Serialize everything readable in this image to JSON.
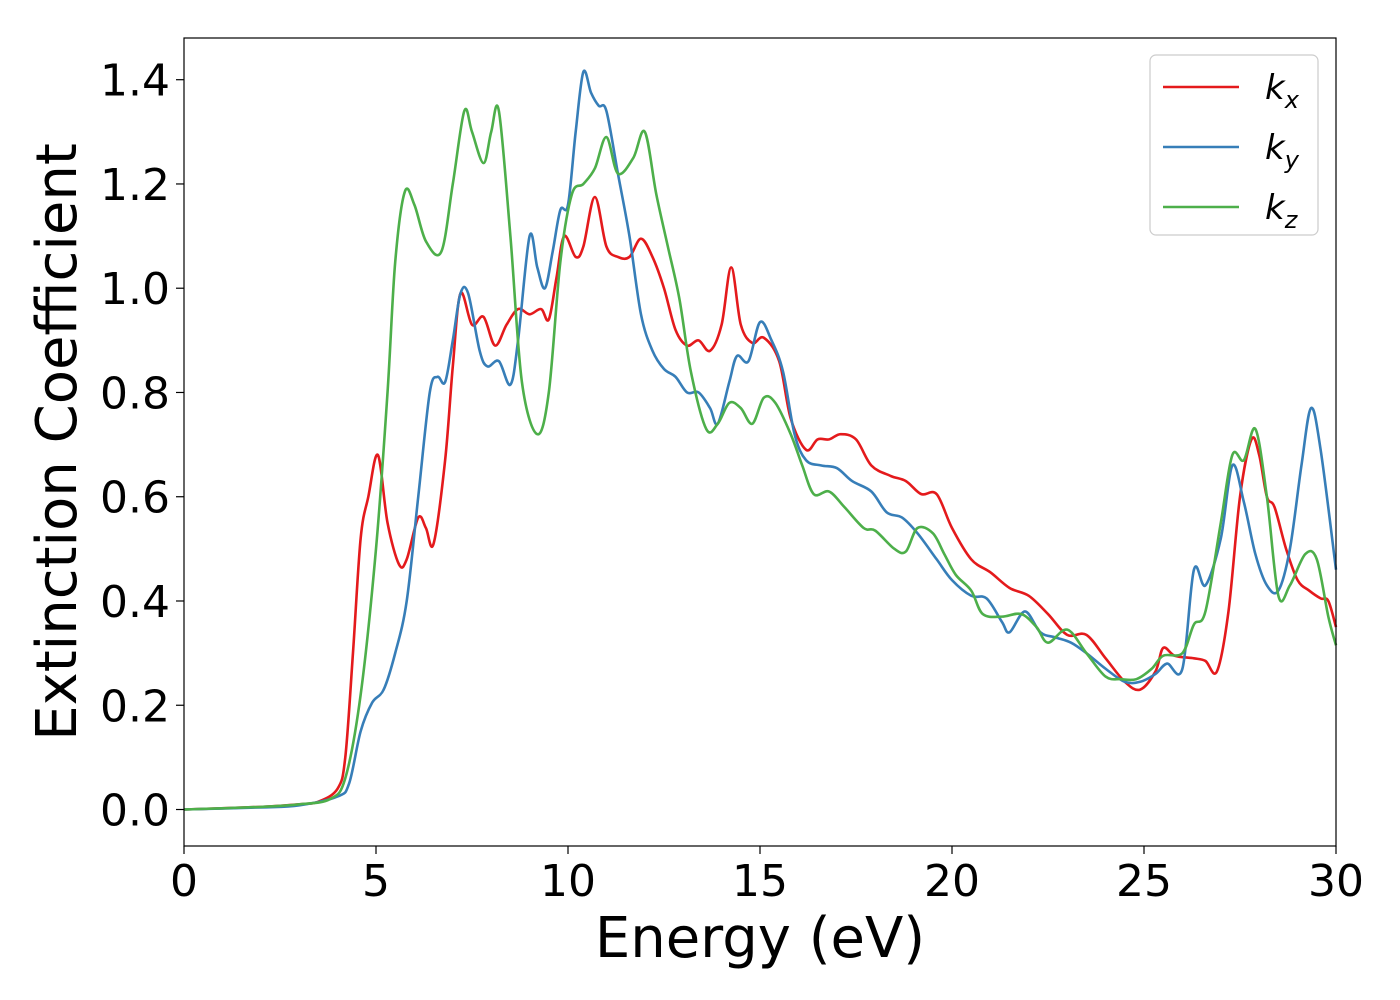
{
  "chart_data": {
    "type": "line",
    "xlabel": "Energy (eV)",
    "ylabel": "Extinction Coefficient",
    "xlim": [
      0,
      30
    ],
    "ylim": [
      -0.07,
      1.48
    ],
    "xticks": [
      0,
      5,
      10,
      15,
      20,
      25,
      30
    ],
    "xtick_labels": [
      "0",
      "5",
      "10",
      "15",
      "20",
      "25",
      "30"
    ],
    "yticks": [
      0.0,
      0.2,
      0.4,
      0.6,
      0.8,
      1.0,
      1.2,
      1.4
    ],
    "ytick_labels": [
      "0.0",
      "0.2",
      "0.4",
      "0.6",
      "0.8",
      "1.0",
      "1.2",
      "1.4"
    ],
    "grid": false,
    "legend_position": "top-right",
    "series": [
      {
        "name": "kx",
        "legend_base": "k",
        "legend_sub": "x",
        "color": "#e41a1c",
        "points": [
          [
            0,
            0
          ],
          [
            2,
            0.005
          ],
          [
            3,
            0.01
          ],
          [
            3.5,
            0.015
          ],
          [
            4,
            0.04
          ],
          [
            4.2,
            0.1
          ],
          [
            4.4,
            0.3
          ],
          [
            4.6,
            0.52
          ],
          [
            4.8,
            0.6
          ],
          [
            5.05,
            0.68
          ],
          [
            5.3,
            0.55
          ],
          [
            5.6,
            0.47
          ],
          [
            5.8,
            0.48
          ],
          [
            6.1,
            0.56
          ],
          [
            6.3,
            0.54
          ],
          [
            6.5,
            0.51
          ],
          [
            6.8,
            0.67
          ],
          [
            7.0,
            0.85
          ],
          [
            7.2,
            0.99
          ],
          [
            7.5,
            0.93
          ],
          [
            7.8,
            0.945
          ],
          [
            8.1,
            0.89
          ],
          [
            8.4,
            0.93
          ],
          [
            8.7,
            0.96
          ],
          [
            9.0,
            0.95
          ],
          [
            9.3,
            0.96
          ],
          [
            9.5,
            0.94
          ],
          [
            9.7,
            1.02
          ],
          [
            9.9,
            1.1
          ],
          [
            10.2,
            1.06
          ],
          [
            10.4,
            1.08
          ],
          [
            10.7,
            1.175
          ],
          [
            11.0,
            1.08
          ],
          [
            11.3,
            1.06
          ],
          [
            11.6,
            1.06
          ],
          [
            11.9,
            1.095
          ],
          [
            12.2,
            1.06
          ],
          [
            12.5,
            1.0
          ],
          [
            12.8,
            0.92
          ],
          [
            13.1,
            0.89
          ],
          [
            13.4,
            0.9
          ],
          [
            13.7,
            0.88
          ],
          [
            14.0,
            0.93
          ],
          [
            14.25,
            1.04
          ],
          [
            14.5,
            0.93
          ],
          [
            14.8,
            0.895
          ],
          [
            15.1,
            0.905
          ],
          [
            15.5,
            0.86
          ],
          [
            15.8,
            0.75
          ],
          [
            16.2,
            0.69
          ],
          [
            16.5,
            0.71
          ],
          [
            16.8,
            0.71
          ],
          [
            17.1,
            0.72
          ],
          [
            17.5,
            0.71
          ],
          [
            17.9,
            0.66
          ],
          [
            18.4,
            0.64
          ],
          [
            18.8,
            0.63
          ],
          [
            19.2,
            0.605
          ],
          [
            19.6,
            0.605
          ],
          [
            20.0,
            0.54
          ],
          [
            20.5,
            0.48
          ],
          [
            21.0,
            0.455
          ],
          [
            21.5,
            0.425
          ],
          [
            22.0,
            0.41
          ],
          [
            22.5,
            0.375
          ],
          [
            23.0,
            0.335
          ],
          [
            23.5,
            0.335
          ],
          [
            24.0,
            0.29
          ],
          [
            24.5,
            0.245
          ],
          [
            24.9,
            0.23
          ],
          [
            25.3,
            0.265
          ],
          [
            25.5,
            0.31
          ],
          [
            25.8,
            0.295
          ],
          [
            26.3,
            0.29
          ],
          [
            26.6,
            0.285
          ],
          [
            26.9,
            0.265
          ],
          [
            27.2,
            0.38
          ],
          [
            27.5,
            0.6
          ],
          [
            27.8,
            0.71
          ],
          [
            28.0,
            0.68
          ],
          [
            28.2,
            0.6
          ],
          [
            28.4,
            0.58
          ],
          [
            28.7,
            0.5
          ],
          [
            29.0,
            0.44
          ],
          [
            29.3,
            0.42
          ],
          [
            29.6,
            0.405
          ],
          [
            29.8,
            0.4
          ],
          [
            30.0,
            0.35
          ]
        ]
      },
      {
        "name": "ky",
        "legend_base": "k",
        "legend_sub": "y",
        "color": "#377eb8",
        "points": [
          [
            0,
            0
          ],
          [
            2,
            0.004
          ],
          [
            3,
            0.008
          ],
          [
            4,
            0.025
          ],
          [
            4.3,
            0.05
          ],
          [
            4.6,
            0.15
          ],
          [
            4.9,
            0.205
          ],
          [
            5.2,
            0.23
          ],
          [
            5.5,
            0.3
          ],
          [
            5.8,
            0.4
          ],
          [
            6.1,
            0.6
          ],
          [
            6.4,
            0.8
          ],
          [
            6.6,
            0.83
          ],
          [
            6.8,
            0.82
          ],
          [
            7.0,
            0.9
          ],
          [
            7.2,
            0.99
          ],
          [
            7.4,
            0.99
          ],
          [
            7.7,
            0.88
          ],
          [
            7.9,
            0.85
          ],
          [
            8.2,
            0.86
          ],
          [
            8.5,
            0.815
          ],
          [
            8.7,
            0.9
          ],
          [
            9.0,
            1.1
          ],
          [
            9.2,
            1.04
          ],
          [
            9.4,
            1.0
          ],
          [
            9.6,
            1.07
          ],
          [
            9.8,
            1.15
          ],
          [
            10.0,
            1.16
          ],
          [
            10.2,
            1.3
          ],
          [
            10.4,
            1.415
          ],
          [
            10.6,
            1.375
          ],
          [
            10.8,
            1.35
          ],
          [
            11.0,
            1.34
          ],
          [
            11.3,
            1.22
          ],
          [
            11.6,
            1.1
          ],
          [
            11.9,
            0.95
          ],
          [
            12.2,
            0.88
          ],
          [
            12.5,
            0.845
          ],
          [
            12.8,
            0.83
          ],
          [
            13.1,
            0.8
          ],
          [
            13.4,
            0.8
          ],
          [
            13.7,
            0.77
          ],
          [
            13.9,
            0.74
          ],
          [
            14.2,
            0.82
          ],
          [
            14.4,
            0.87
          ],
          [
            14.7,
            0.86
          ],
          [
            15.0,
            0.935
          ],
          [
            15.3,
            0.9
          ],
          [
            15.6,
            0.84
          ],
          [
            15.9,
            0.72
          ],
          [
            16.2,
            0.67
          ],
          [
            16.6,
            0.66
          ],
          [
            17.0,
            0.655
          ],
          [
            17.4,
            0.63
          ],
          [
            17.9,
            0.61
          ],
          [
            18.3,
            0.57
          ],
          [
            18.7,
            0.56
          ],
          [
            19.1,
            0.53
          ],
          [
            19.6,
            0.48
          ],
          [
            20.0,
            0.44
          ],
          [
            20.5,
            0.41
          ],
          [
            20.9,
            0.405
          ],
          [
            21.3,
            0.36
          ],
          [
            21.5,
            0.34
          ],
          [
            21.9,
            0.38
          ],
          [
            22.3,
            0.34
          ],
          [
            22.7,
            0.33
          ],
          [
            23.1,
            0.32
          ],
          [
            23.5,
            0.3
          ],
          [
            24.0,
            0.27
          ],
          [
            24.5,
            0.245
          ],
          [
            24.9,
            0.245
          ],
          [
            25.3,
            0.26
          ],
          [
            25.6,
            0.28
          ],
          [
            26.0,
            0.27
          ],
          [
            26.3,
            0.46
          ],
          [
            26.6,
            0.43
          ],
          [
            27.0,
            0.52
          ],
          [
            27.3,
            0.66
          ],
          [
            27.6,
            0.59
          ],
          [
            27.9,
            0.49
          ],
          [
            28.2,
            0.43
          ],
          [
            28.5,
            0.42
          ],
          [
            28.8,
            0.5
          ],
          [
            29.1,
            0.66
          ],
          [
            29.35,
            0.77
          ],
          [
            29.6,
            0.69
          ],
          [
            30.0,
            0.46
          ]
        ]
      },
      {
        "name": "kz",
        "legend_base": "k",
        "legend_sub": "z",
        "color": "#4daf4a",
        "points": [
          [
            0,
            0
          ],
          [
            2,
            0.005
          ],
          [
            3,
            0.01
          ],
          [
            3.8,
            0.02
          ],
          [
            4.2,
            0.06
          ],
          [
            4.6,
            0.22
          ],
          [
            5.0,
            0.5
          ],
          [
            5.3,
            0.8
          ],
          [
            5.5,
            1.05
          ],
          [
            5.75,
            1.185
          ],
          [
            6.0,
            1.16
          ],
          [
            6.3,
            1.09
          ],
          [
            6.7,
            1.07
          ],
          [
            7.0,
            1.2
          ],
          [
            7.3,
            1.34
          ],
          [
            7.5,
            1.3
          ],
          [
            7.8,
            1.24
          ],
          [
            8.0,
            1.3
          ],
          [
            8.2,
            1.34
          ],
          [
            8.5,
            1.1
          ],
          [
            8.8,
            0.82
          ],
          [
            9.2,
            0.72
          ],
          [
            9.5,
            0.8
          ],
          [
            9.8,
            1.05
          ],
          [
            10.1,
            1.18
          ],
          [
            10.4,
            1.2
          ],
          [
            10.7,
            1.23
          ],
          [
            11.0,
            1.29
          ],
          [
            11.3,
            1.22
          ],
          [
            11.7,
            1.25
          ],
          [
            12.0,
            1.3
          ],
          [
            12.3,
            1.18
          ],
          [
            12.6,
            1.08
          ],
          [
            12.9,
            0.98
          ],
          [
            13.2,
            0.84
          ],
          [
            13.6,
            0.73
          ],
          [
            13.9,
            0.74
          ],
          [
            14.2,
            0.78
          ],
          [
            14.5,
            0.77
          ],
          [
            14.8,
            0.74
          ],
          [
            15.1,
            0.79
          ],
          [
            15.4,
            0.78
          ],
          [
            15.8,
            0.72
          ],
          [
            16.1,
            0.66
          ],
          [
            16.4,
            0.605
          ],
          [
            16.8,
            0.61
          ],
          [
            17.2,
            0.58
          ],
          [
            17.7,
            0.54
          ],
          [
            18.0,
            0.535
          ],
          [
            18.5,
            0.5
          ],
          [
            18.8,
            0.495
          ],
          [
            19.1,
            0.54
          ],
          [
            19.5,
            0.53
          ],
          [
            19.8,
            0.49
          ],
          [
            20.1,
            0.45
          ],
          [
            20.5,
            0.42
          ],
          [
            20.8,
            0.375
          ],
          [
            21.3,
            0.37
          ],
          [
            21.8,
            0.375
          ],
          [
            22.2,
            0.35
          ],
          [
            22.5,
            0.32
          ],
          [
            23.0,
            0.345
          ],
          [
            23.5,
            0.3
          ],
          [
            24.0,
            0.255
          ],
          [
            24.4,
            0.25
          ],
          [
            24.8,
            0.25
          ],
          [
            25.2,
            0.27
          ],
          [
            25.5,
            0.295
          ],
          [
            26.0,
            0.3
          ],
          [
            26.3,
            0.355
          ],
          [
            26.6,
            0.38
          ],
          [
            27.0,
            0.55
          ],
          [
            27.3,
            0.68
          ],
          [
            27.6,
            0.67
          ],
          [
            27.9,
            0.73
          ],
          [
            28.2,
            0.6
          ],
          [
            28.5,
            0.41
          ],
          [
            28.8,
            0.43
          ],
          [
            29.2,
            0.49
          ],
          [
            29.5,
            0.48
          ],
          [
            29.8,
            0.37
          ],
          [
            30.0,
            0.315
          ]
        ]
      }
    ]
  }
}
